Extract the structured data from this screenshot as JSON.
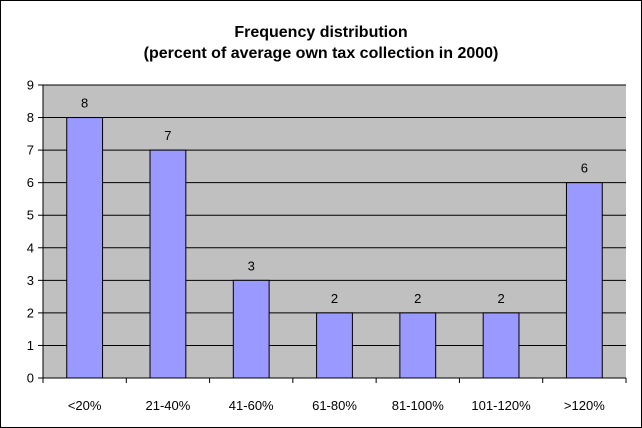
{
  "colors": {
    "plot_background": "#c0c0c0",
    "bar_fill": "#9999ff",
    "bar_stroke": "#000000",
    "gridline": "#000000"
  },
  "chart_data": {
    "type": "bar",
    "title_lines": [
      "Frequency distribution",
      "(percent of average own tax collection in 2000)"
    ],
    "xlabel": "",
    "ylabel": "",
    "categories": [
      "<20%",
      "21-40%",
      "41-60%",
      "61-80%",
      "81-100%",
      "101-120%",
      ">120%"
    ],
    "values": [
      8,
      7,
      3,
      2,
      2,
      2,
      6
    ],
    "data_labels": [
      "8",
      "7",
      "3",
      "2",
      "2",
      "2",
      "6"
    ],
    "ylim": [
      0,
      9
    ],
    "yticks": [
      0,
      1,
      2,
      3,
      4,
      5,
      6,
      7,
      8,
      9
    ],
    "grid": true,
    "legend": "none"
  }
}
